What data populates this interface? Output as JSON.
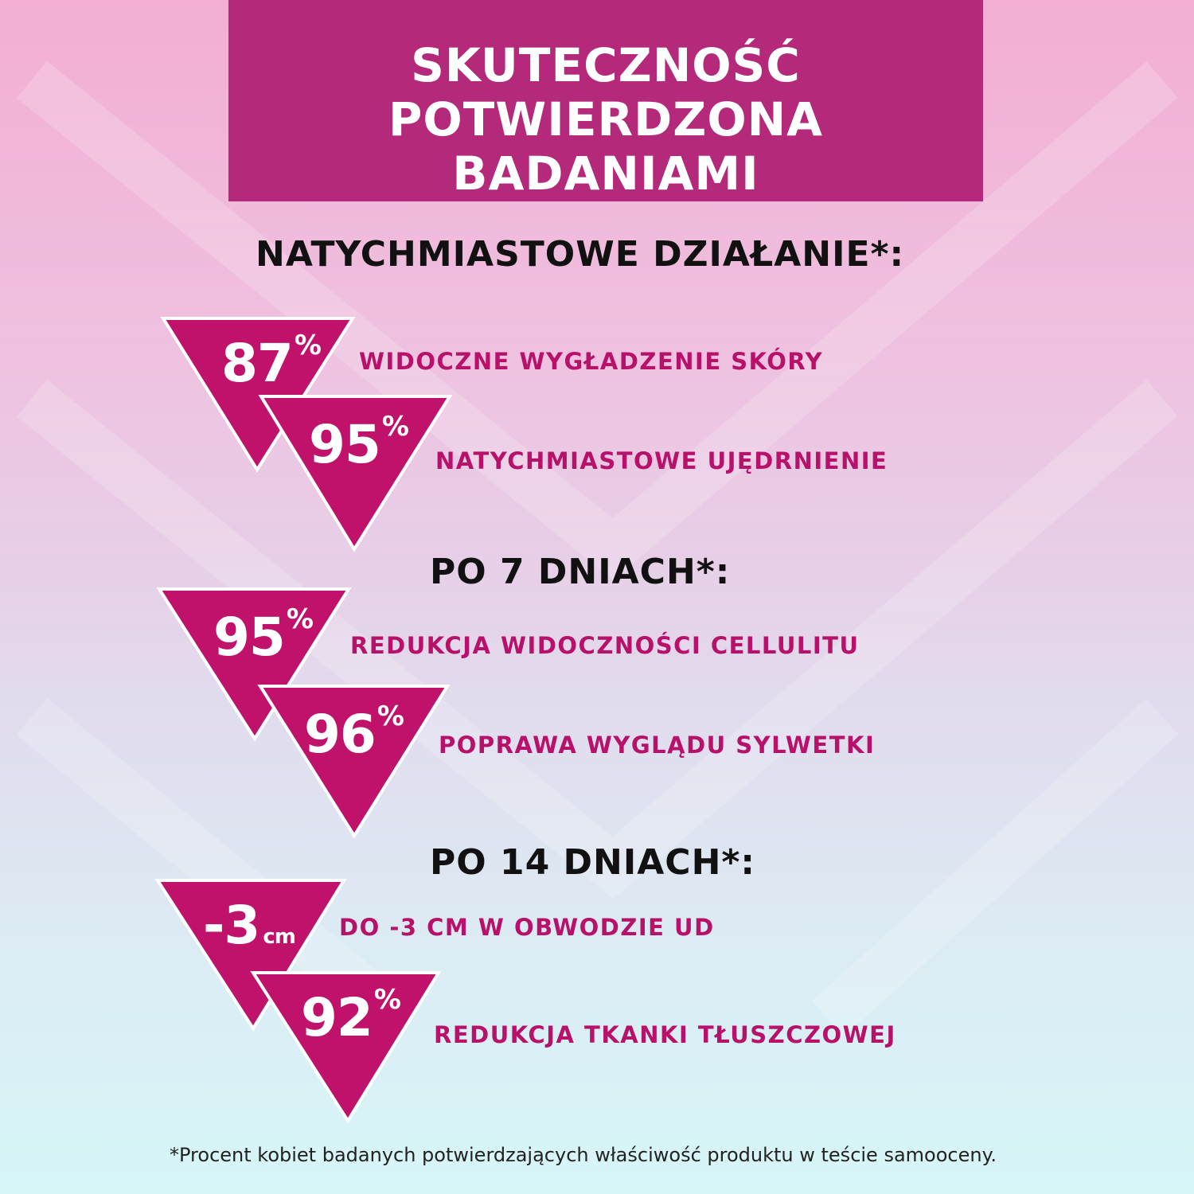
{
  "title": {
    "line1": "SKUTECZNOŚĆ",
    "line2": "POTWIERDZONA BADANIAMI"
  },
  "colors": {
    "title_bg": "#b5297a",
    "accent": "#c0126a",
    "label": "#b8116a"
  },
  "sections": [
    {
      "heading": "NATYCHMIASTOWE DZIAŁANIE*:",
      "items": [
        {
          "value": "87",
          "unit": "%",
          "label": "WIDOCZNE WYGŁADZENIE SKÓRY"
        },
        {
          "value": "95",
          "unit": "%",
          "label": "NATYCHMIASTOWE UJĘDRNIENIE"
        }
      ]
    },
    {
      "heading": "PO 7 DNIACH*:",
      "items": [
        {
          "value": "95",
          "unit": "%",
          "label": "REDUKCJA WIDOCZNOŚCI CELLULITU"
        },
        {
          "value": "96",
          "unit": "%",
          "label": "POPRAWA WYGLĄDU SYLWETKI"
        }
      ]
    },
    {
      "heading": "PO 14 DNIACH*:",
      "items": [
        {
          "value": "-3",
          "unit": "cm",
          "label": "DO -3 CM W OBWODZIE UD"
        },
        {
          "value": "92",
          "unit": "%",
          "label": "REDUKCJA TKANKI TŁUSZCZOWEJ"
        }
      ]
    }
  ],
  "footnote": "*Procent kobiet badanych potwierdzających właściwość produktu w teście samooceny."
}
